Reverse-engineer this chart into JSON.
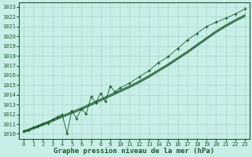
{
  "bg_color": "#c8eee8",
  "grid_color": "#a8d8cc",
  "line_color": "#1a5c2a",
  "xlabel": "Graphe pression niveau de la mer (hPa)",
  "xlim": [
    -0.5,
    23.5
  ],
  "ylim": [
    1009.5,
    1023.5
  ],
  "yticks": [
    1010,
    1011,
    1012,
    1013,
    1014,
    1015,
    1016,
    1017,
    1018,
    1019,
    1020,
    1021,
    1022,
    1023
  ],
  "xticks": [
    0,
    1,
    2,
    3,
    4,
    5,
    6,
    7,
    8,
    9,
    10,
    11,
    12,
    13,
    14,
    15,
    16,
    17,
    18,
    19,
    20,
    21,
    22,
    23
  ],
  "smooth1_x": [
    0,
    1,
    2,
    3,
    4,
    5,
    6,
    7,
    8,
    9,
    10,
    11,
    12,
    13,
    14,
    15,
    16,
    17,
    18,
    19,
    20,
    21,
    22,
    23
  ],
  "smooth1_y": [
    1010.3,
    1010.65,
    1011.05,
    1011.45,
    1011.85,
    1012.25,
    1012.65,
    1013.1,
    1013.55,
    1014.0,
    1014.45,
    1014.9,
    1015.4,
    1015.95,
    1016.55,
    1017.15,
    1017.8,
    1018.45,
    1019.15,
    1019.85,
    1020.55,
    1021.15,
    1021.7,
    1022.2
  ],
  "smooth2_x": [
    0,
    1,
    2,
    3,
    4,
    5,
    6,
    7,
    8,
    9,
    10,
    11,
    12,
    13,
    14,
    15,
    16,
    17,
    18,
    19,
    20,
    21,
    22,
    23
  ],
  "smooth2_y": [
    1010.15,
    1010.5,
    1010.9,
    1011.3,
    1011.7,
    1012.1,
    1012.5,
    1012.95,
    1013.4,
    1013.85,
    1014.3,
    1014.75,
    1015.25,
    1015.8,
    1016.4,
    1017.0,
    1017.65,
    1018.3,
    1019.0,
    1019.7,
    1020.4,
    1021.0,
    1021.55,
    1022.05
  ],
  "raw_x": [
    0,
    0.5,
    1,
    1.5,
    2,
    2.5,
    3,
    3.5,
    4,
    4.5,
    5,
    5.5,
    6,
    6.5,
    7,
    7.5,
    8,
    8.5,
    9,
    9.5,
    10,
    11,
    12,
    13,
    14,
    15,
    16,
    17,
    18,
    19,
    20,
    21,
    22,
    23
  ],
  "raw_y": [
    1010.25,
    1010.35,
    1010.65,
    1010.75,
    1011.0,
    1011.1,
    1011.45,
    1011.75,
    1012.0,
    1010.05,
    1012.35,
    1011.6,
    1012.55,
    1012.05,
    1013.8,
    1013.2,
    1014.15,
    1013.35,
    1014.9,
    1014.3,
    1014.7,
    1015.2,
    1015.85,
    1016.45,
    1017.3,
    1017.9,
    1018.75,
    1019.6,
    1020.3,
    1021.0,
    1021.45,
    1021.85,
    1022.3,
    1022.8
  ],
  "label_fontsize": 6.5,
  "tick_fontsize": 5.0
}
